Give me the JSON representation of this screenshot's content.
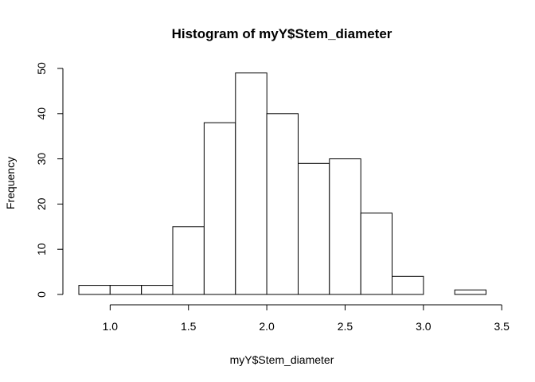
{
  "chart_data": {
    "type": "bar",
    "title": "Histogram of myY$Stem_diameter",
    "xlabel": "myY$Stem_diameter",
    "ylabel": "Frequency",
    "bins": [
      {
        "x0": 0.8,
        "x1": 1.0,
        "count": 2
      },
      {
        "x0": 1.0,
        "x1": 1.2,
        "count": 2
      },
      {
        "x0": 1.2,
        "x1": 1.4,
        "count": 2
      },
      {
        "x0": 1.4,
        "x1": 1.6,
        "count": 15
      },
      {
        "x0": 1.6,
        "x1": 1.8,
        "count": 38
      },
      {
        "x0": 1.8,
        "x1": 2.0,
        "count": 49
      },
      {
        "x0": 2.0,
        "x1": 2.2,
        "count": 40
      },
      {
        "x0": 2.2,
        "x1": 2.4,
        "count": 29
      },
      {
        "x0": 2.4,
        "x1": 2.6,
        "count": 30
      },
      {
        "x0": 2.6,
        "x1": 2.8,
        "count": 18
      },
      {
        "x0": 2.8,
        "x1": 3.0,
        "count": 4
      },
      {
        "x0": 3.0,
        "x1": 3.2,
        "count": 0
      },
      {
        "x0": 3.2,
        "x1": 3.4,
        "count": 1
      }
    ],
    "xticks": [
      {
        "value": 1.0,
        "label": "1.0"
      },
      {
        "value": 1.5,
        "label": "1.5"
      },
      {
        "value": 2.0,
        "label": "2.0"
      },
      {
        "value": 2.5,
        "label": "2.5"
      },
      {
        "value": 3.0,
        "label": "3.0"
      },
      {
        "value": 3.5,
        "label": "3.5"
      }
    ],
    "yticks": [
      {
        "value": 0,
        "label": "0"
      },
      {
        "value": 10,
        "label": "10"
      },
      {
        "value": 20,
        "label": "20"
      },
      {
        "value": 30,
        "label": "30"
      },
      {
        "value": 40,
        "label": "40"
      },
      {
        "value": 50,
        "label": "50"
      }
    ],
    "xlim": [
      0.8,
      3.5
    ],
    "ylim": [
      0,
      50
    ],
    "grid": false,
    "legend": "none",
    "bar_fill": "#ffffff",
    "bar_stroke": "#000000"
  }
}
